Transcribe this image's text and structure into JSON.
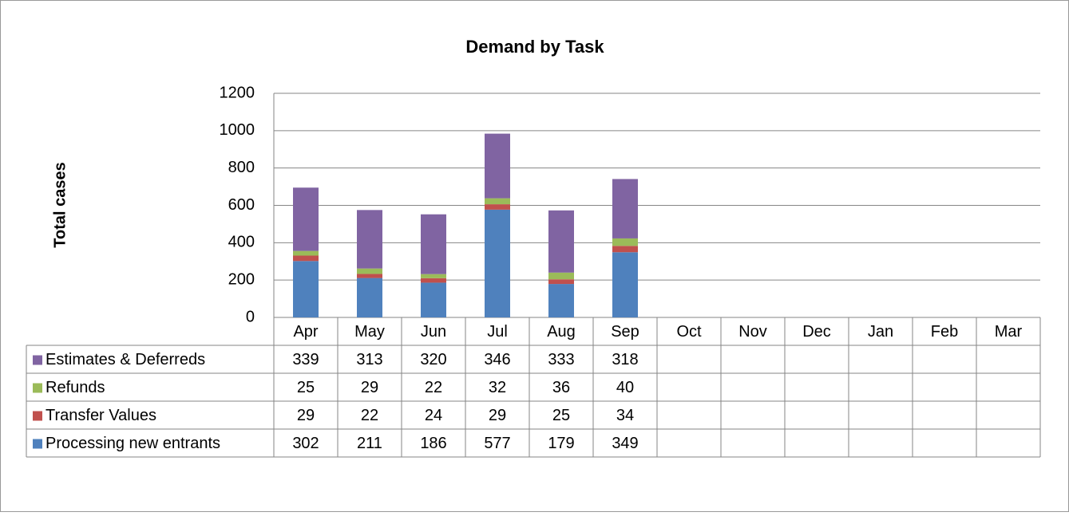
{
  "chart_data": {
    "type": "stacked_bar",
    "title": "Demand by Task",
    "y_label": "Total cases",
    "categories": [
      "Apr",
      "May",
      "Jun",
      "Jul",
      "Aug",
      "Sep",
      "Oct",
      "Nov",
      "Dec",
      "Jan",
      "Feb",
      "Mar"
    ],
    "series": [
      {
        "name": "Processing new entrants",
        "color": "#4f81bd",
        "values": [
          302,
          211,
          186,
          577,
          179,
          349,
          null,
          null,
          null,
          null,
          null,
          null
        ]
      },
      {
        "name": "Transfer Values",
        "color": "#c0504d",
        "values": [
          29,
          22,
          24,
          29,
          25,
          34,
          null,
          null,
          null,
          null,
          null,
          null
        ]
      },
      {
        "name": "Refunds",
        "color": "#9bbb59",
        "values": [
          25,
          29,
          22,
          32,
          36,
          40,
          null,
          null,
          null,
          null,
          null,
          null
        ]
      },
      {
        "name": "Estimates & Deferreds",
        "color": "#8064a2",
        "values": [
          339,
          313,
          320,
          346,
          333,
          318,
          null,
          null,
          null,
          null,
          null,
          null
        ]
      }
    ],
    "ylim": [
      0,
      1200
    ],
    "yticks": [
      0,
      200,
      400,
      600,
      800,
      1000,
      1200
    ],
    "grid": true,
    "data_table": true
  }
}
